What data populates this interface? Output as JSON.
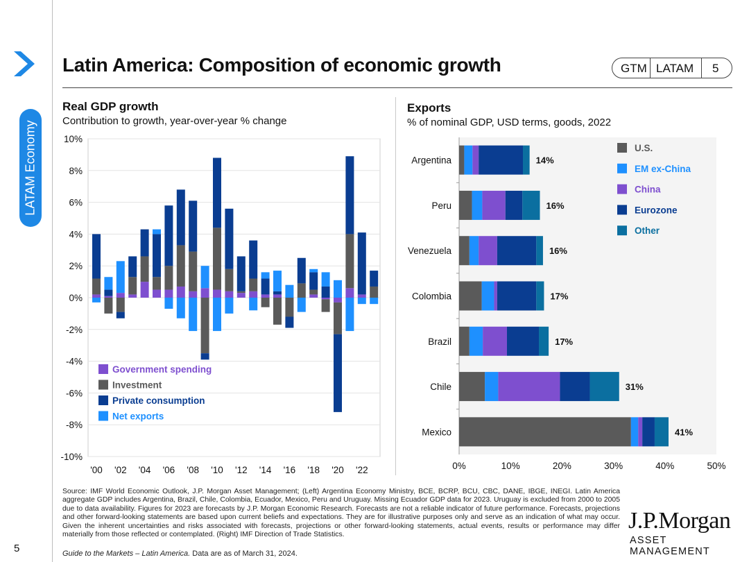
{
  "header": {
    "title": "Latin America: Composition of economic growth",
    "pill": [
      "GTM",
      "LATAM",
      "5"
    ],
    "side_label": "LATAM Economy"
  },
  "left_chart": {
    "title": "Real GDP growth",
    "subtitle": "Contribution to growth, year-over-year % change"
  },
  "right_chart": {
    "title": "Exports",
    "subtitle": "% of nominal GDP, USD terms, goods, 2022"
  },
  "chart_data": [
    {
      "type": "bar",
      "stacked": true,
      "title": "Real GDP growth",
      "subtitle": "Contribution to growth, year-over-year % change",
      "categories": [
        "2000",
        "2001",
        "2002",
        "2003",
        "2004",
        "2005",
        "2006",
        "2007",
        "2008",
        "2009",
        "2010",
        "2011",
        "2012",
        "2013",
        "2014",
        "2015",
        "2016",
        "2017",
        "2018",
        "2019",
        "2020",
        "2021",
        "2022",
        "2023"
      ],
      "x_tick_labels": [
        "'00",
        "'02",
        "'04",
        "'06",
        "'08",
        "'10",
        "'12",
        "'14",
        "'16",
        "'18",
        "'20",
        "'22"
      ],
      "ylim": [
        -10,
        10
      ],
      "y_ticks": [
        10,
        8,
        6,
        4,
        2,
        0,
        -2,
        -4,
        -6,
        -8,
        -10
      ],
      "y_tick_labels": [
        "10%",
        "8%",
        "6%",
        "4%",
        "2%",
        "0%",
        "-2%",
        "-4%",
        "-6%",
        "-8%",
        "-10%"
      ],
      "legend": [
        "Government spending",
        "Investment",
        "Private consumption",
        "Net exports"
      ],
      "series": [
        {
          "name": "Government spending",
          "color": "#7e4fcf",
          "values": [
            0.2,
            0.1,
            0.3,
            0.2,
            1.0,
            0.5,
            0.5,
            0.7,
            0.4,
            0.6,
            0.5,
            0.4,
            0.3,
            0.4,
            0.2,
            0.2,
            0.0,
            0.0,
            0.2,
            -0.1,
            -0.3,
            0.6,
            0.2,
            0.0
          ]
        },
        {
          "name": "Investment",
          "color": "#5a5a5a",
          "values": [
            1.0,
            -1.0,
            -0.9,
            1.1,
            1.6,
            0.8,
            1.5,
            2.6,
            2.5,
            -3.5,
            3.9,
            1.4,
            0.1,
            0.8,
            -0.6,
            -1.7,
            -1.2,
            0.9,
            0.3,
            -0.8,
            -2.0,
            3.4,
            0.0,
            0.7
          ]
        },
        {
          "name": "Private consumption",
          "color": "#0a3d91",
          "values": [
            2.8,
            0.4,
            -0.4,
            1.3,
            1.7,
            2.7,
            3.8,
            3.5,
            3.2,
            -0.4,
            4.4,
            3.8,
            2.2,
            2.4,
            1.0,
            0.2,
            -0.7,
            1.6,
            1.1,
            0.7,
            -4.9,
            4.9,
            3.9,
            1.0
          ]
        },
        {
          "name": "Net exports",
          "color": "#1e90ff",
          "values": [
            -0.3,
            0.8,
            2.0,
            0.0,
            0.0,
            0.3,
            -0.7,
            -1.3,
            -2.1,
            1.4,
            -2.1,
            -1.0,
            0.0,
            -0.8,
            0.4,
            1.3,
            0.8,
            -0.9,
            0.2,
            0.9,
            1.1,
            -2.1,
            -0.4,
            -0.4
          ]
        }
      ]
    },
    {
      "type": "bar",
      "orientation": "horizontal",
      "stacked": true,
      "title": "Exports",
      "subtitle": "% of nominal GDP, USD terms, goods, 2022",
      "categories": [
        "Argentina",
        "Peru",
        "Venezuela",
        "Colombia",
        "Brazil",
        "Chile",
        "Mexico"
      ],
      "totals_labels": [
        "14%",
        "16%",
        "16%",
        "17%",
        "17%",
        "31%",
        "41%"
      ],
      "xlim": [
        0,
        50
      ],
      "x_ticks": [
        0,
        10,
        20,
        30,
        40,
        50
      ],
      "x_tick_labels": [
        "0%",
        "10%",
        "20%",
        "30%",
        "40%",
        "50%"
      ],
      "legend": [
        "U.S.",
        "EM ex-China",
        "China",
        "Eurozone",
        "Other"
      ],
      "series": [
        {
          "name": "U.S.",
          "color": "#5a5a5a",
          "values": [
            1.0,
            2.5,
            2.0,
            4.4,
            2.0,
            5.0,
            33.4
          ]
        },
        {
          "name": "EM ex-China",
          "color": "#1e90ff",
          "values": [
            1.6,
            2.0,
            1.8,
            2.4,
            2.6,
            2.6,
            1.4
          ]
        },
        {
          "name": "China",
          "color": "#7e4fcf",
          "values": [
            1.2,
            4.5,
            3.6,
            0.6,
            4.7,
            12.0,
            0.8
          ]
        },
        {
          "name": "Eurozone",
          "color": "#0a3d91",
          "values": [
            8.6,
            3.3,
            7.6,
            7.6,
            6.2,
            5.8,
            2.4
          ]
        },
        {
          "name": "Other",
          "color": "#0b6fa0",
          "values": [
            1.3,
            3.4,
            1.3,
            1.5,
            1.9,
            5.7,
            2.7
          ]
        }
      ]
    }
  ],
  "footer": {
    "footnote": "Source: IMF World Economic Outlook, J.P. Morgan Asset Management; (Left) Argentina Economy Ministry, BCE, BCRP, BCU, CBC, DANE, IBGE, INEGI. Latin America aggregate GDP includes Argentina, Brazil, Chile, Colombia, Ecuador, Mexico, Peru and Uruguay. Missing Ecuador GDP data for 2023. Uruguay is excluded from 2000 to 2005 due to data availability. Figures for 2023 are forecasts by J.P. Morgan Economic Research. Forecasts are not a reliable indicator of future performance. Forecasts, projections and other forward-looking statements are based upon current beliefs and expectations. They are for illustrative purposes only and serve as an indication of what may occur. Given the inherent uncertainties and risks associated with forecasts, projections or other forward-looking statements, actual events, results or performance may differ materially from those reflected or contemplated. (Right) IMF Direction of Trade Statistics.",
    "guide_italic": "Guide to the Markets – Latin America.",
    "guide_rest": " Data are as of March 31, 2024.",
    "page_number": "5",
    "logo": "J.P.Morgan",
    "logo_sub": "ASSET MANAGEMENT"
  }
}
